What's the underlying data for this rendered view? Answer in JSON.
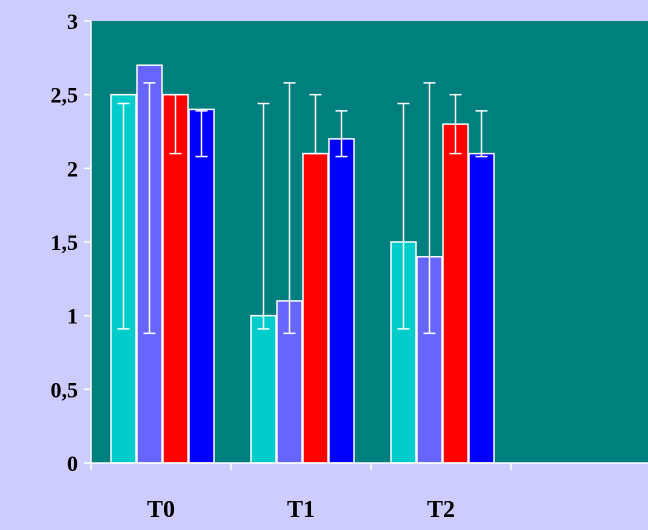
{
  "chart_data": {
    "type": "bar",
    "title": "",
    "xlabel": "",
    "ylabel": "",
    "categories": [
      "T0",
      "T1",
      "T2"
    ],
    "ylim": [
      0,
      3
    ],
    "yticks": [
      "0",
      "0,5",
      "1",
      "1,5",
      "2",
      "2,5",
      "3"
    ],
    "grid": false,
    "legend": "none",
    "series": [
      {
        "color": "#00cccc",
        "values": [
          2.5,
          1.0,
          1.5
        ],
        "error_low": [
          0.91,
          0.91,
          0.91
        ],
        "error_high": [
          2.44,
          2.44,
          2.44
        ]
      },
      {
        "color": "#6666ff",
        "values": [
          2.7,
          1.1,
          1.4
        ],
        "error_low": [
          0.88,
          0.88,
          0.88
        ],
        "error_high": [
          2.58,
          2.58,
          2.58
        ]
      },
      {
        "color": "#ff0000",
        "values": [
          2.5,
          2.1,
          2.3
        ],
        "error_low": [
          2.1,
          2.1,
          2.1
        ],
        "error_high": [
          2.5,
          2.5,
          2.5
        ]
      },
      {
        "color": "#0000ff",
        "values": [
          2.4,
          2.2,
          2.1
        ],
        "error_low": [
          2.08,
          2.08,
          2.08
        ],
        "error_high": [
          2.39,
          2.39,
          2.39
        ]
      }
    ],
    "plot_background": "#007f7f",
    "page_background": "#ccccff"
  }
}
